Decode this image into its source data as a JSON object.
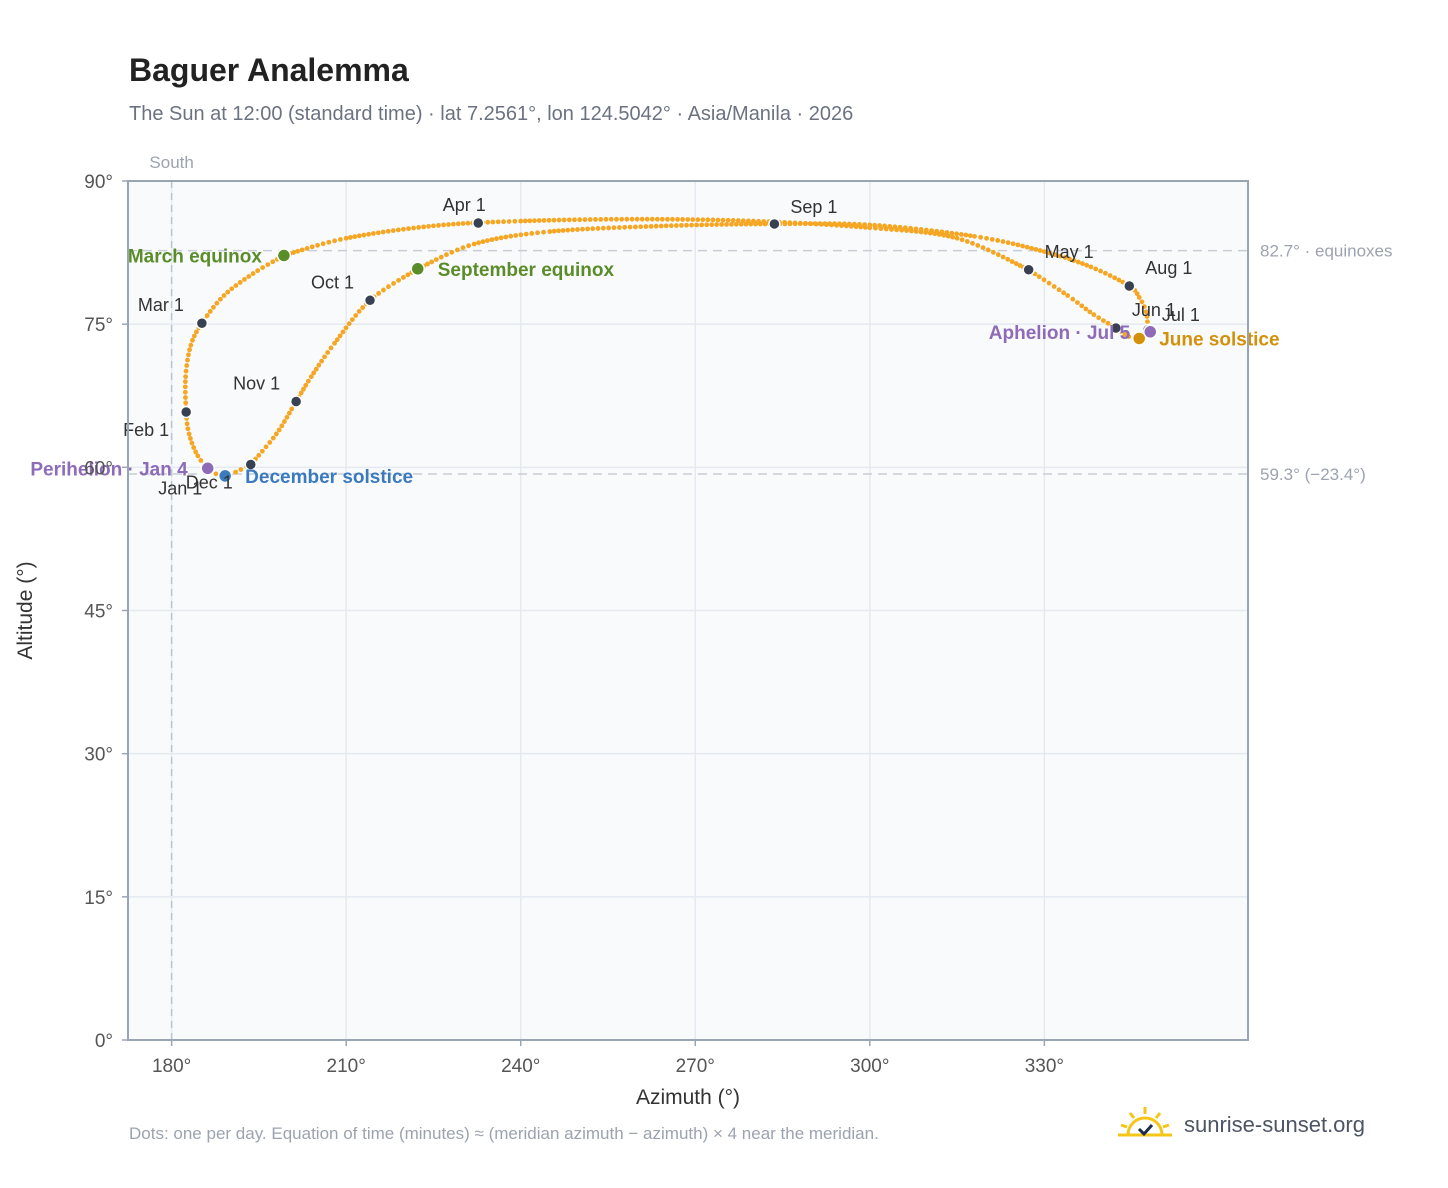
{
  "header": {
    "title": "Baguer Analemma",
    "subtitle": "The Sun at 12:00 (standard time) · lat 7.2561°, lon 124.5042° · Asia/Manila · 2026"
  },
  "footer": {
    "note": "Dots: one per day. Equation of time (minutes) ≈ (meridian azimuth − azimuth) × 4 near the meridian.",
    "brand": "sunrise-sunset.org"
  },
  "colors": {
    "path": "#f5a623",
    "month_marker": "#374151",
    "equinox": "#5b8c2a",
    "june_solstice": "#d4900a",
    "december_solstice": "#3a7abd",
    "apsis": "#8e6bb8",
    "grid": "#e5e9f0",
    "plot_bg": "#f8fafc",
    "ref_line": "#c7ced6"
  },
  "chart_data": {
    "type": "scatter",
    "xlabel": "Azimuth (°)",
    "ylabel": "Altitude (°)",
    "xlim": [
      172.5,
      365
    ],
    "ylim": [
      0,
      90
    ],
    "xticks": [
      180,
      210,
      240,
      270,
      300,
      330
    ],
    "xtick_labels": [
      "180°",
      "210°",
      "240°",
      "270°",
      "300°",
      "330°"
    ],
    "yticks": [
      0,
      15,
      30,
      45,
      60,
      75,
      90
    ],
    "ytick_labels": [
      "0°",
      "15°",
      "30°",
      "45°",
      "60°",
      "75°",
      "90°"
    ],
    "grid": true,
    "meridian": {
      "azimuth": 180,
      "label": "South"
    },
    "reference_lines": [
      {
        "altitude": 82.7,
        "label": "82.7° · equinoxes"
      },
      {
        "altitude": 59.3,
        "label": "59.3° (−23.4°)"
      }
    ],
    "month_points": [
      {
        "label": "Jan 1",
        "az": 186.3,
        "alt": 59.9
      },
      {
        "label": "Feb 1",
        "az": 182.5,
        "alt": 65.8
      },
      {
        "label": "Mar 1",
        "az": 185.2,
        "alt": 75.1
      },
      {
        "label": "Apr 1",
        "az": 232.7,
        "alt": 85.6
      },
      {
        "label": "May 1",
        "az": 327.3,
        "alt": 80.7
      },
      {
        "label": "Jun 1",
        "az": 342.3,
        "alt": 74.6
      },
      {
        "label": "Jul 1",
        "az": 347.8,
        "alt": 74.4
      },
      {
        "label": "Aug 1",
        "az": 344.6,
        "alt": 79.0
      },
      {
        "label": "Sep 1",
        "az": 283.6,
        "alt": 85.5
      },
      {
        "label": "Oct 1",
        "az": 214.1,
        "alt": 77.5
      },
      {
        "label": "Nov 1",
        "az": 201.4,
        "alt": 66.9
      },
      {
        "label": "Dec 1",
        "az": 193.6,
        "alt": 60.3
      }
    ],
    "events": [
      {
        "label": "March equinox",
        "az": 199.3,
        "alt": 82.2,
        "kind": "equinox"
      },
      {
        "label": "September equinox",
        "az": 222.3,
        "alt": 80.8,
        "kind": "equinox"
      },
      {
        "label": "June solstice",
        "az": 346.3,
        "alt": 73.5,
        "kind": "june_solstice"
      },
      {
        "label": "December solstice",
        "az": 189.2,
        "alt": 59.1,
        "kind": "december_solstice"
      },
      {
        "label": "Perihelion · Jan 4",
        "az": 186.2,
        "alt": 59.9,
        "kind": "apsis"
      },
      {
        "label": "Aphelion · Jul 5",
        "az": 348.2,
        "alt": 74.2,
        "kind": "apsis"
      }
    ],
    "path_segments": [
      {
        "name": "Dec–Mar southern lobe",
        "points": [
          [
            193.6,
            60.3
          ],
          [
            191.0,
            59.5
          ],
          [
            189.2,
            59.1
          ],
          [
            186.8,
            59.6
          ],
          [
            184.5,
            61.2
          ],
          [
            183.0,
            63.5
          ],
          [
            182.5,
            65.8
          ],
          [
            182.4,
            69.5
          ],
          [
            183.3,
            72.8
          ],
          [
            185.2,
            75.1
          ],
          [
            189.0,
            78.0
          ],
          [
            194.0,
            80.3
          ],
          [
            199.3,
            82.2
          ]
        ]
      },
      {
        "name": "Mar–May northern arc",
        "points": [
          [
            199.3,
            82.2
          ],
          [
            210.0,
            84.0
          ],
          [
            225.0,
            85.3
          ],
          [
            240.0,
            85.8
          ],
          [
            260.0,
            86.0
          ],
          [
            280.0,
            85.8
          ],
          [
            300.0,
            85.1
          ],
          [
            315.0,
            84.0
          ],
          [
            327.3,
            80.7
          ]
        ]
      },
      {
        "name": "May–Jul descent",
        "points": [
          [
            327.3,
            80.7
          ],
          [
            334.0,
            78.0
          ],
          [
            338.5,
            76.0
          ],
          [
            342.3,
            74.6
          ],
          [
            344.5,
            73.7
          ],
          [
            346.3,
            73.5
          ],
          [
            347.8,
            74.4
          ]
        ]
      },
      {
        "name": "Jul–Sep return",
        "points": [
          [
            347.8,
            74.4
          ],
          [
            347.5,
            76.3
          ],
          [
            346.3,
            77.8
          ],
          [
            344.6,
            79.0
          ],
          [
            338.0,
            81.0
          ],
          [
            330.0,
            82.6
          ],
          [
            318.0,
            84.2
          ],
          [
            300.0,
            85.4
          ],
          [
            283.6,
            85.5
          ],
          [
            265.0,
            85.3
          ],
          [
            245.0,
            84.7
          ],
          [
            232.0,
            83.4
          ],
          [
            222.3,
            80.8
          ]
        ]
      },
      {
        "name": "Sep–Dec return",
        "points": [
          [
            222.3,
            80.8
          ],
          [
            214.1,
            77.5
          ],
          [
            208.0,
            73.0
          ],
          [
            204.0,
            69.5
          ],
          [
            201.4,
            66.9
          ],
          [
            198.0,
            63.5
          ],
          [
            193.6,
            60.3
          ]
        ]
      }
    ]
  }
}
